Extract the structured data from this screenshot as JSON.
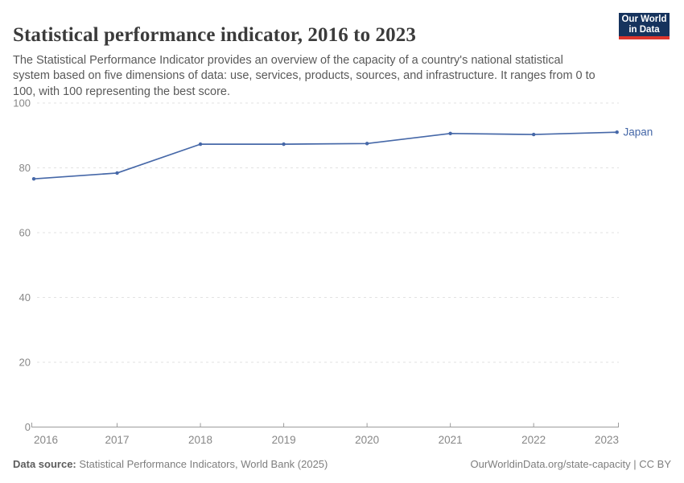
{
  "header": {
    "title": "Statistical performance indicator, 2016 to 2023",
    "subtitle": "The Statistical Performance Indicator provides an overview of the capacity of a country's national statistical system based on five dimensions of data: use, services, products, sources, and infrastructure. It ranges from 0 to 100, with 100 representing the best score.",
    "logo": {
      "line1": "Our World",
      "line2": "in Data",
      "bg_color": "#16335d",
      "accent_color": "#dc352c"
    }
  },
  "chart_data": {
    "type": "line",
    "title": "Statistical performance indicator, 2016 to 2023",
    "x": [
      2016,
      2017,
      2018,
      2019,
      2020,
      2021,
      2022,
      2023
    ],
    "series": [
      {
        "name": "Japan",
        "color": "#4668a8",
        "values": [
          76.6,
          78.4,
          87.3,
          87.3,
          87.5,
          90.6,
          90.3,
          91.0
        ]
      }
    ],
    "xlabel": "",
    "ylabel": "",
    "ylim": [
      0,
      100
    ],
    "yticks": [
      0,
      20,
      40,
      60,
      80,
      100
    ],
    "grid": "horizontal-dashed",
    "legend": "end-of-line-label"
  },
  "colors": {
    "grid": "#e2e2e2",
    "axis_line": "#9c9c9c",
    "tick_label": "#878787",
    "line": "#4668a8"
  },
  "footer": {
    "source_label": "Data source:",
    "source_text": " Statistical Performance Indicators, World Bank (2025)",
    "link_text": "OurWorldinData.org/state-capacity | CC BY"
  }
}
